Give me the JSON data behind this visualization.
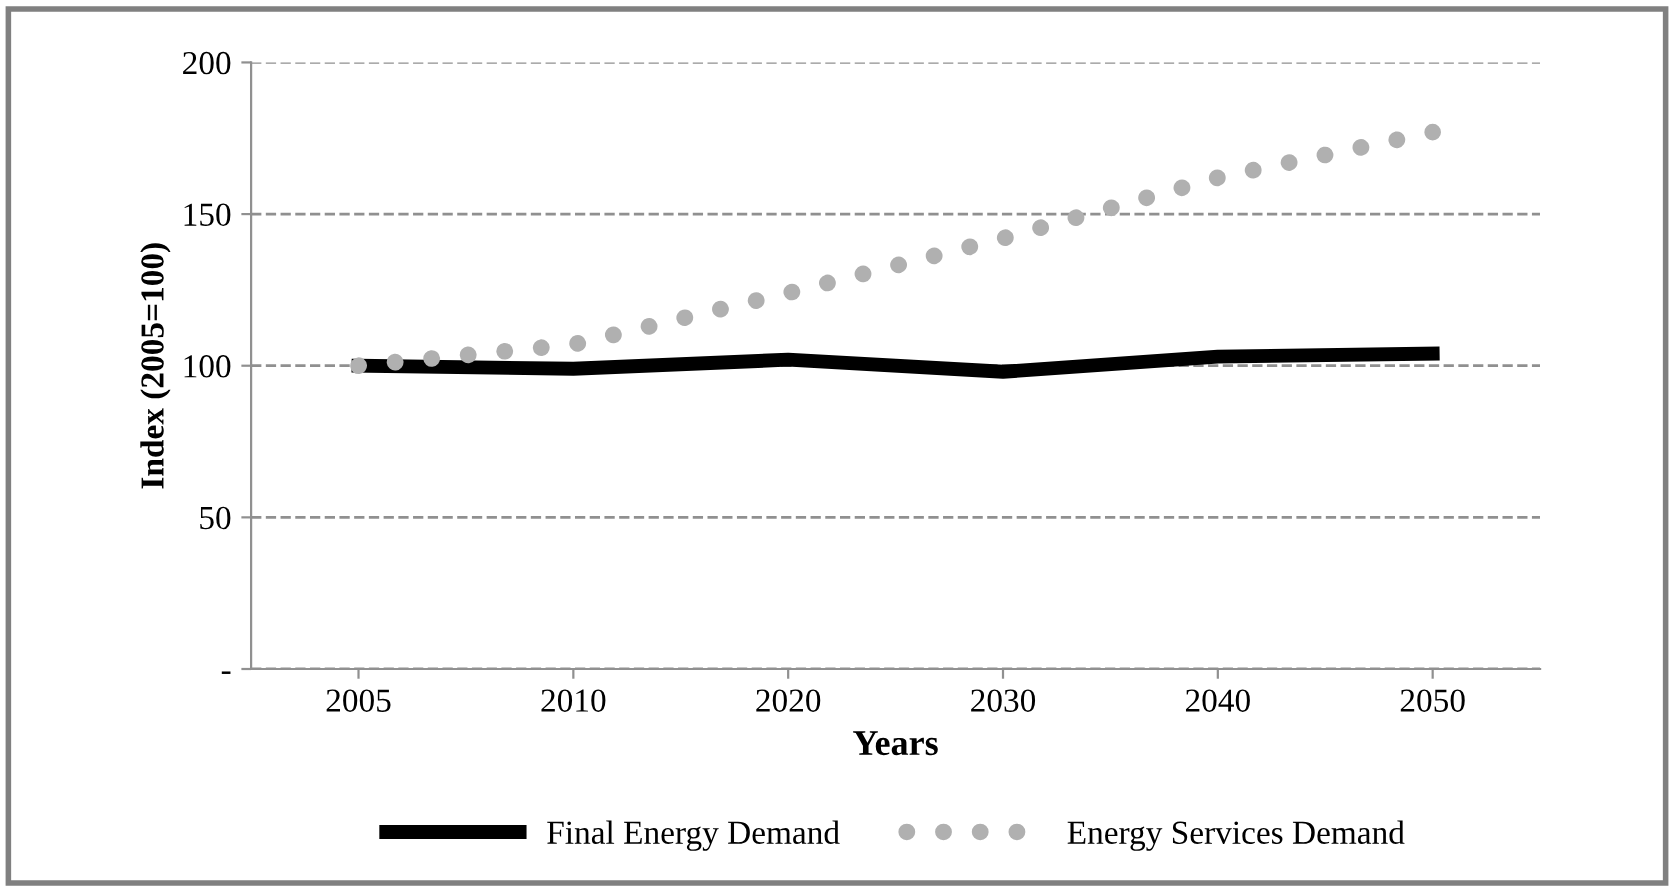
{
  "chart_data": {
    "type": "line",
    "xlabel": "Years",
    "ylabel": "Index (2005=100)",
    "categories": [
      "2005",
      "2010",
      "2020",
      "2030",
      "2040",
      "2050"
    ],
    "series": [
      {
        "name": "Final Energy Demand",
        "color": "#000000",
        "values": [
          100,
          99,
          102,
          98,
          103,
          104
        ],
        "line_style": "solid"
      },
      {
        "name": "Energy Services Demand",
        "color": "#b0b0b0",
        "values": [
          100,
          107,
          124,
          142,
          162,
          177
        ],
        "line_style": "dotted"
      }
    ],
    "ylim": [
      0,
      200
    ],
    "yticks": [
      {
        "value": 0,
        "label": "-"
      },
      50,
      100,
      150,
      200
    ],
    "grid": "y",
    "legend": "bottom"
  }
}
